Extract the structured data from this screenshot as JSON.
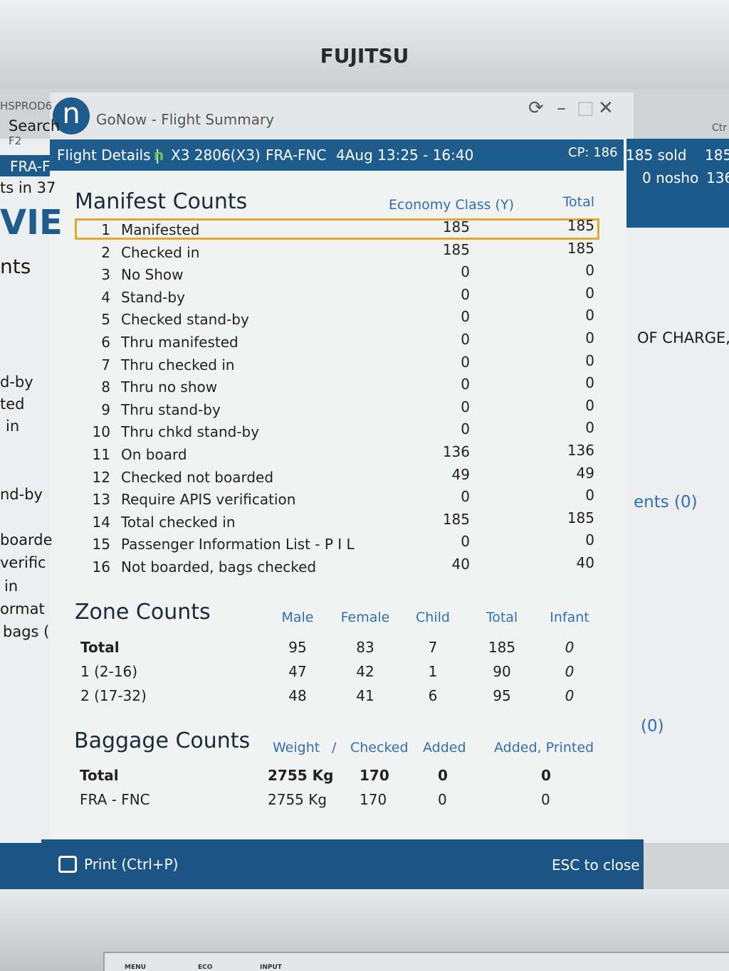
{
  "monitor": {
    "brand": "FUJITSU",
    "buttons": [
      "MENU",
      "ECO",
      "INPUT"
    ]
  },
  "background_left": [
    "HSPROD6",
    "Search",
    "F2",
    "FRA-F",
    "ts in 37",
    "VIE",
    "nts",
    "d-by",
    "ted",
    "in",
    "nd-by",
    "boarde",
    "verific",
    "in",
    "ormat",
    "bags ("
  ],
  "background_right": [
    "185 sold",
    "185",
    "0 nosho",
    "136",
    "OF CHARGE,",
    "ents (0)",
    "(0)",
    "Ctr"
  ],
  "window": {
    "title": "GoNow - Flight Summary",
    "icon": "n"
  },
  "flight_bar": {
    "label": "Flight Details |",
    "flight": "X3 2806(X3)",
    "route": "FRA-FNC",
    "time": "4Aug 13:25 - 16:40",
    "cp": "CP: 186"
  },
  "manifest": {
    "title": "Manifest Counts",
    "columns": [
      "Economy Class (Y)",
      "Total"
    ],
    "rows": [
      [
        1,
        "Manifested",
        185,
        185
      ],
      [
        2,
        "Checked in",
        185,
        185
      ],
      [
        3,
        "No Show",
        0,
        0
      ],
      [
        4,
        "Stand-by",
        0,
        0
      ],
      [
        5,
        "Checked stand-by",
        0,
        0
      ],
      [
        6,
        "Thru manifested",
        0,
        0
      ],
      [
        7,
        "Thru checked in",
        0,
        0
      ],
      [
        8,
        "Thru no show",
        0,
        0
      ],
      [
        9,
        "Thru stand-by",
        0,
        0
      ],
      [
        10,
        "Thru chkd stand-by",
        0,
        0
      ],
      [
        11,
        "On board",
        136,
        136
      ],
      [
        12,
        "Checked not boarded",
        49,
        49
      ],
      [
        13,
        "Require APIS verification",
        0,
        0
      ],
      [
        14,
        "Total checked in",
        185,
        185
      ],
      [
        15,
        "Passenger Information List - P I L",
        0,
        0
      ],
      [
        16,
        "Not boarded, bags checked",
        40,
        40
      ]
    ]
  },
  "zone": {
    "title": "Zone Counts",
    "columns": [
      "Male",
      "Female",
      "Child",
      "Total",
      "Infant"
    ],
    "rows": [
      [
        "Total",
        95,
        83,
        7,
        185,
        0
      ],
      [
        "1 (2-16)",
        47,
        42,
        1,
        90,
        0
      ],
      [
        "2 (17-32)",
        48,
        41,
        6,
        95,
        0
      ]
    ]
  },
  "baggage": {
    "title": "Baggage Counts",
    "columns": [
      "Weight",
      "/",
      "Checked",
      "Added",
      "Added, Printed"
    ],
    "rows": [
      [
        "Total",
        "2755 Kg",
        170,
        0,
        0
      ],
      [
        "FRA - FNC",
        "2755 Kg",
        170,
        0,
        0
      ]
    ]
  },
  "footer": {
    "print": "Print (Ctrl+P)",
    "close": "ESC to close"
  }
}
